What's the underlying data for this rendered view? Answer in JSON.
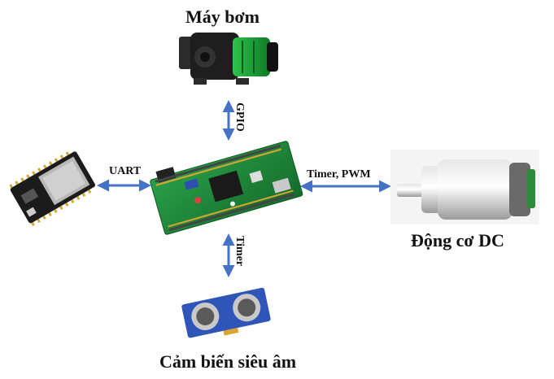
{
  "nodes": {
    "pump": {
      "label": "Máy bơm"
    },
    "esp32": {
      "label": ""
    },
    "mcu": {
      "label": ""
    },
    "motor": {
      "label": "Động cơ DC"
    },
    "ultrasonic": {
      "label": "Cảm biến siêu âm"
    }
  },
  "edges": {
    "mcu_pump": {
      "label": "GPIO"
    },
    "mcu_esp32": {
      "label": "UART"
    },
    "mcu_motor": {
      "label": "Timer, PWM"
    },
    "mcu_ultrasonic": {
      "label": "Timer"
    }
  },
  "colors": {
    "arrow": "#4472c4",
    "board": "#1f8a3a",
    "motor_bg": "#f4f4f4"
  }
}
